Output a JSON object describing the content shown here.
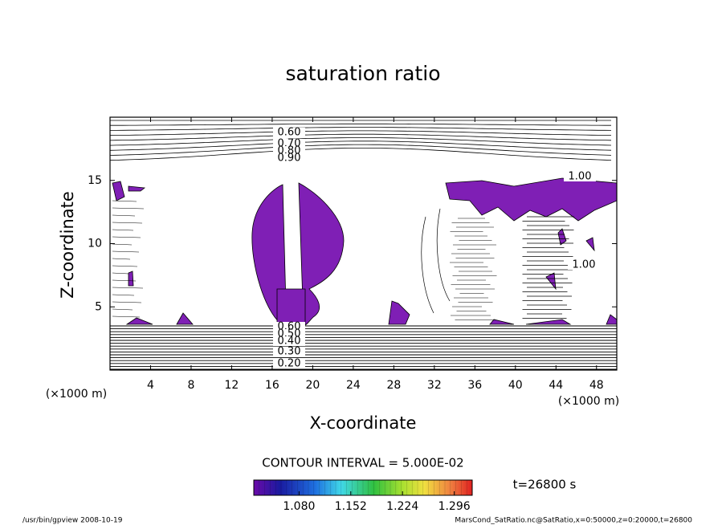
{
  "chart_data": {
    "type": "contour",
    "title": "saturation ratio",
    "x_label": "X-coordinate",
    "y_label": "Z-coordinate",
    "y_unit_label": "(×1000 m)",
    "x_unit_label": "(×1000 m)",
    "xlim": [
      0,
      50
    ],
    "xticks": [
      4,
      8,
      12,
      16,
      20,
      24,
      28,
      32,
      36,
      40,
      44,
      48
    ],
    "ylim": [
      0,
      20
    ],
    "yticks": [
      5,
      10,
      15
    ],
    "fill_color": "#7f1fb5",
    "contour_labels": [
      {
        "value": 0.6,
        "label": "0.60"
      },
      {
        "value": 0.7,
        "label": "0.70"
      },
      {
        "value": 0.8,
        "label": "0.80"
      },
      {
        "value": 0.9,
        "label": "0.90"
      },
      {
        "value": 0.6,
        "label": "0.60"
      },
      {
        "value": 0.5,
        "label": "0.50"
      },
      {
        "value": 0.4,
        "label": "0.40"
      },
      {
        "value": 0.3,
        "label": "0.30"
      },
      {
        "value": 0.2,
        "label": "0.20"
      },
      {
        "value": 1.0,
        "label": "1.00"
      },
      {
        "value": 1.0,
        "label": "1.00"
      }
    ],
    "contour_interval_label": "CONTOUR INTERVAL = 5.000E-02",
    "colorbar": {
      "lim": [
        1.017,
        1.321
      ],
      "ticks": [
        {
          "value": 1.08,
          "label": "1.080"
        },
        {
          "value": 1.152,
          "label": "1.152"
        },
        {
          "value": 1.224,
          "label": "1.224"
        },
        {
          "value": 1.296,
          "label": "1.296"
        }
      ]
    },
    "time_label": "t=26800 s",
    "footer_left": "/usr/bin/gpview   2008-10-19",
    "footer_right": "MarsCond_SatRatio.nc@SatRatio,x=0:50000,z=0:20000,t=26800"
  }
}
